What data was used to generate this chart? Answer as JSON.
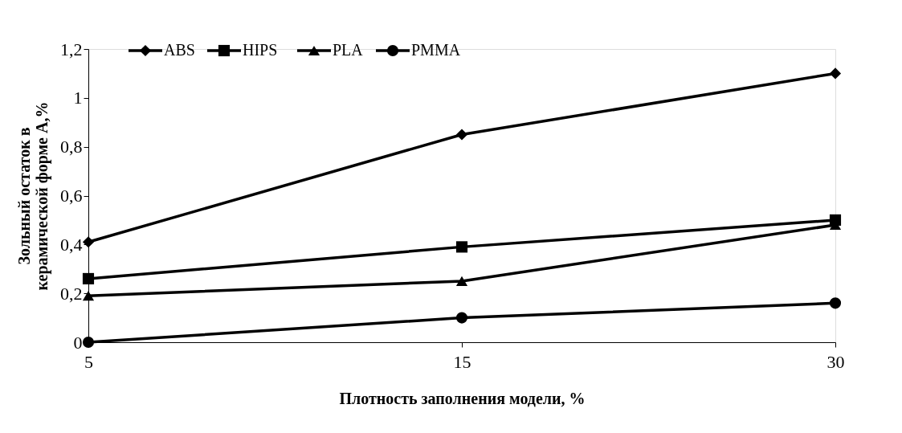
{
  "chart_data": {
    "type": "line",
    "xlabel": "Плотность заполнения модели, %",
    "ylabel": "Зольный  остаток в\nкерамической форме А,%",
    "categories": [
      "5",
      "15",
      "30"
    ],
    "series": [
      {
        "name": "ABS",
        "color": "#000000",
        "marker": "diamond",
        "values": [
          0.41,
          0.85,
          1.1
        ]
      },
      {
        "name": "HIPS",
        "color": "#000000",
        "marker": "square",
        "values": [
          0.26,
          0.39,
          0.5
        ]
      },
      {
        "name": "PLA",
        "color": "#000000",
        "marker": "triangle",
        "values": [
          0.19,
          0.25,
          0.48
        ]
      },
      {
        "name": "PMMA",
        "color": "#000000",
        "marker": "circle",
        "values": [
          0,
          0.1,
          0.16
        ]
      }
    ],
    "ylim": [
      0,
      1.2
    ],
    "yticks": [
      0,
      {
        "value": 0.2,
        "label": "0,2"
      },
      {
        "value": 0.4,
        "label": "0,4"
      },
      {
        "value": 0.6,
        "label": "0,6"
      },
      {
        "value": 0.8,
        "label": "0,8"
      },
      1,
      {
        "value": 1.2,
        "label": "1,2"
      }
    ],
    "grid": false,
    "legend": "top",
    "line_style": "solid"
  }
}
